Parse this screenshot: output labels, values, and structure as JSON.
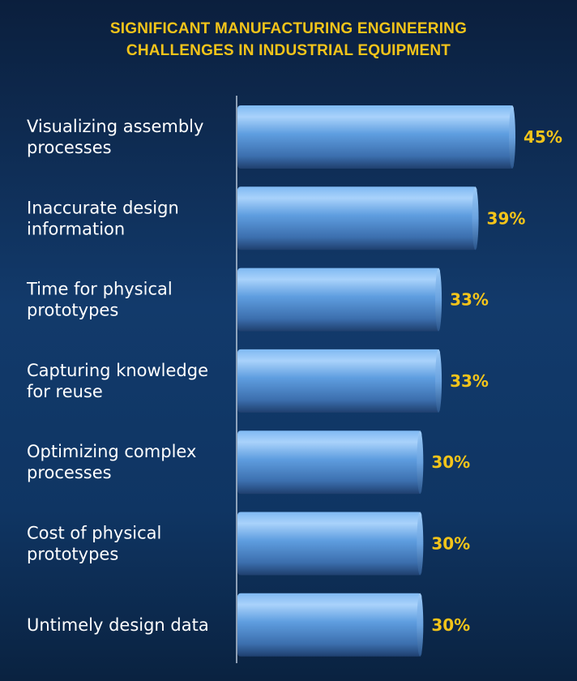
{
  "chart_data": {
    "type": "bar",
    "orientation": "horizontal",
    "title_line1": "SIGNIFICANT MANUFACTURING ENGINEERING",
    "title_line2": "CHALLENGES IN INDUSTRIAL EQUIPMENT",
    "categories": [
      [
        "Visualizing assembly",
        "processes"
      ],
      [
        "Inaccurate design",
        "information"
      ],
      [
        "Time for physical",
        "prototypes"
      ],
      [
        "Capturing knowledge",
        "for reuse"
      ],
      [
        "Optimizing complex",
        "processes"
      ],
      [
        "Cost of physical",
        "prototypes"
      ],
      [
        "Untimely design data"
      ]
    ],
    "values": [
      45,
      39,
      33,
      33,
      30,
      30,
      30
    ],
    "value_labels": [
      "45%",
      "39%",
      "33%",
      "33%",
      "30%",
      "30%",
      "30%"
    ],
    "unit": "%",
    "xlim": [
      0,
      45
    ],
    "grid": false,
    "legend": "none",
    "colors": {
      "bar": "#6aa6e6",
      "value_label": "#f3c41a",
      "title": "#f3c41a",
      "category_label": "#ffffff"
    }
  }
}
